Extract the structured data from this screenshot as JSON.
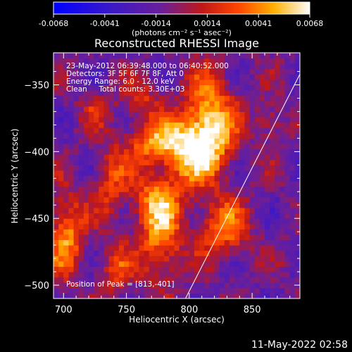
{
  "colorbar": {
    "tick_labels": [
      "-0.0068",
      "-0.0041",
      "-0.0014",
      "0.0014",
      "0.0041",
      "0.0068"
    ],
    "unit_label": "(photons cm⁻² s⁻¹ asec⁻²)"
  },
  "footer": {
    "timestamp": "11-May-2022 02:58"
  },
  "chart_data": {
    "type": "heatmap",
    "title": "Reconstructed RHESSI Image",
    "xlabel": "Heliocentric X (arcsec)",
    "ylabel": "Heliocentric Y (arcsec)",
    "xlim": [
      692,
      888
    ],
    "ylim": [
      -510,
      -326
    ],
    "x_ticks": [
      700,
      750,
      800,
      850
    ],
    "y_ticks": [
      -350,
      -400,
      -450,
      -500
    ],
    "x_tick_labels": [
      "700",
      "750",
      "800",
      "850"
    ],
    "y_tick_labels": [
      "−350",
      "−400",
      "−450",
      "−500"
    ],
    "value_range": [
      -0.0068,
      0.0068
    ],
    "colormap": "rhessi (blue-purple-red-orange-yellow-white)",
    "info_lines": [
      "23-May-2012 06:39:48.000 to 06:40:52.000",
      "Detectors: 3F 5F 6F 7F 8F, Att 0",
      "Energy Range: 6.0 - 12.0 keV",
      "Clean     Total counts: 3.30E+03"
    ],
    "peak_label": "Position of Peak = [813,-401]",
    "peak": [
      813,
      -401
    ],
    "limb_line": {
      "x": [
        797,
        888
      ],
      "y": [
        -510,
        -342
      ]
    },
    "hot_spots": [
      {
        "x": 815,
        "y": -380,
        "value": 0.0062,
        "sx": 14,
        "sy": 26
      },
      {
        "x": 800,
        "y": -400,
        "value": 0.0056,
        "sx": 16,
        "sy": 18
      },
      {
        "x": 770,
        "y": -395,
        "value": 0.005,
        "sx": 16,
        "sy": 12
      },
      {
        "x": 773,
        "y": -437,
        "value": 0.0046,
        "sx": 14,
        "sy": 14
      },
      {
        "x": 775,
        "y": -470,
        "value": 0.0052,
        "sx": 12,
        "sy": 20
      },
      {
        "x": 700,
        "y": -465,
        "value": 0.0055,
        "sx": 10,
        "sy": 22
      },
      {
        "x": 735,
        "y": -425,
        "value": 0.0035,
        "sx": 10,
        "sy": 18
      },
      {
        "x": 740,
        "y": -490,
        "value": 0.0032,
        "sx": 10,
        "sy": 14
      },
      {
        "x": 825,
        "y": -460,
        "value": 0.0048,
        "sx": 14,
        "sy": 16
      },
      {
        "x": 760,
        "y": -362,
        "value": 0.003,
        "sx": 10,
        "sy": 10
      },
      {
        "x": 725,
        "y": -370,
        "value": 0.0025,
        "sx": 9,
        "sy": 9
      },
      {
        "x": 862,
        "y": -380,
        "value": 0.003,
        "sx": 8,
        "sy": 10
      }
    ]
  }
}
